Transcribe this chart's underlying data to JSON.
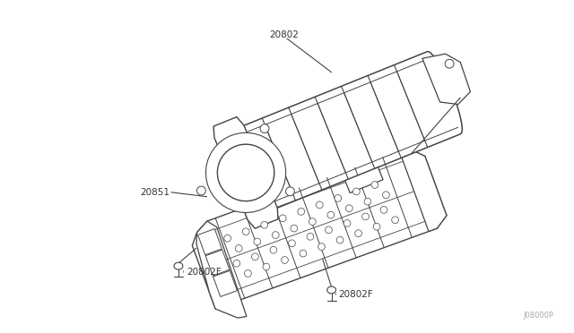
{
  "background_color": "#ffffff",
  "line_color": "#444444",
  "label_color": "#333333",
  "watermark_text": "J08000P",
  "watermark_color": "#aaaaaa",
  "figsize": [
    6.4,
    3.72
  ],
  "dpi": 100
}
